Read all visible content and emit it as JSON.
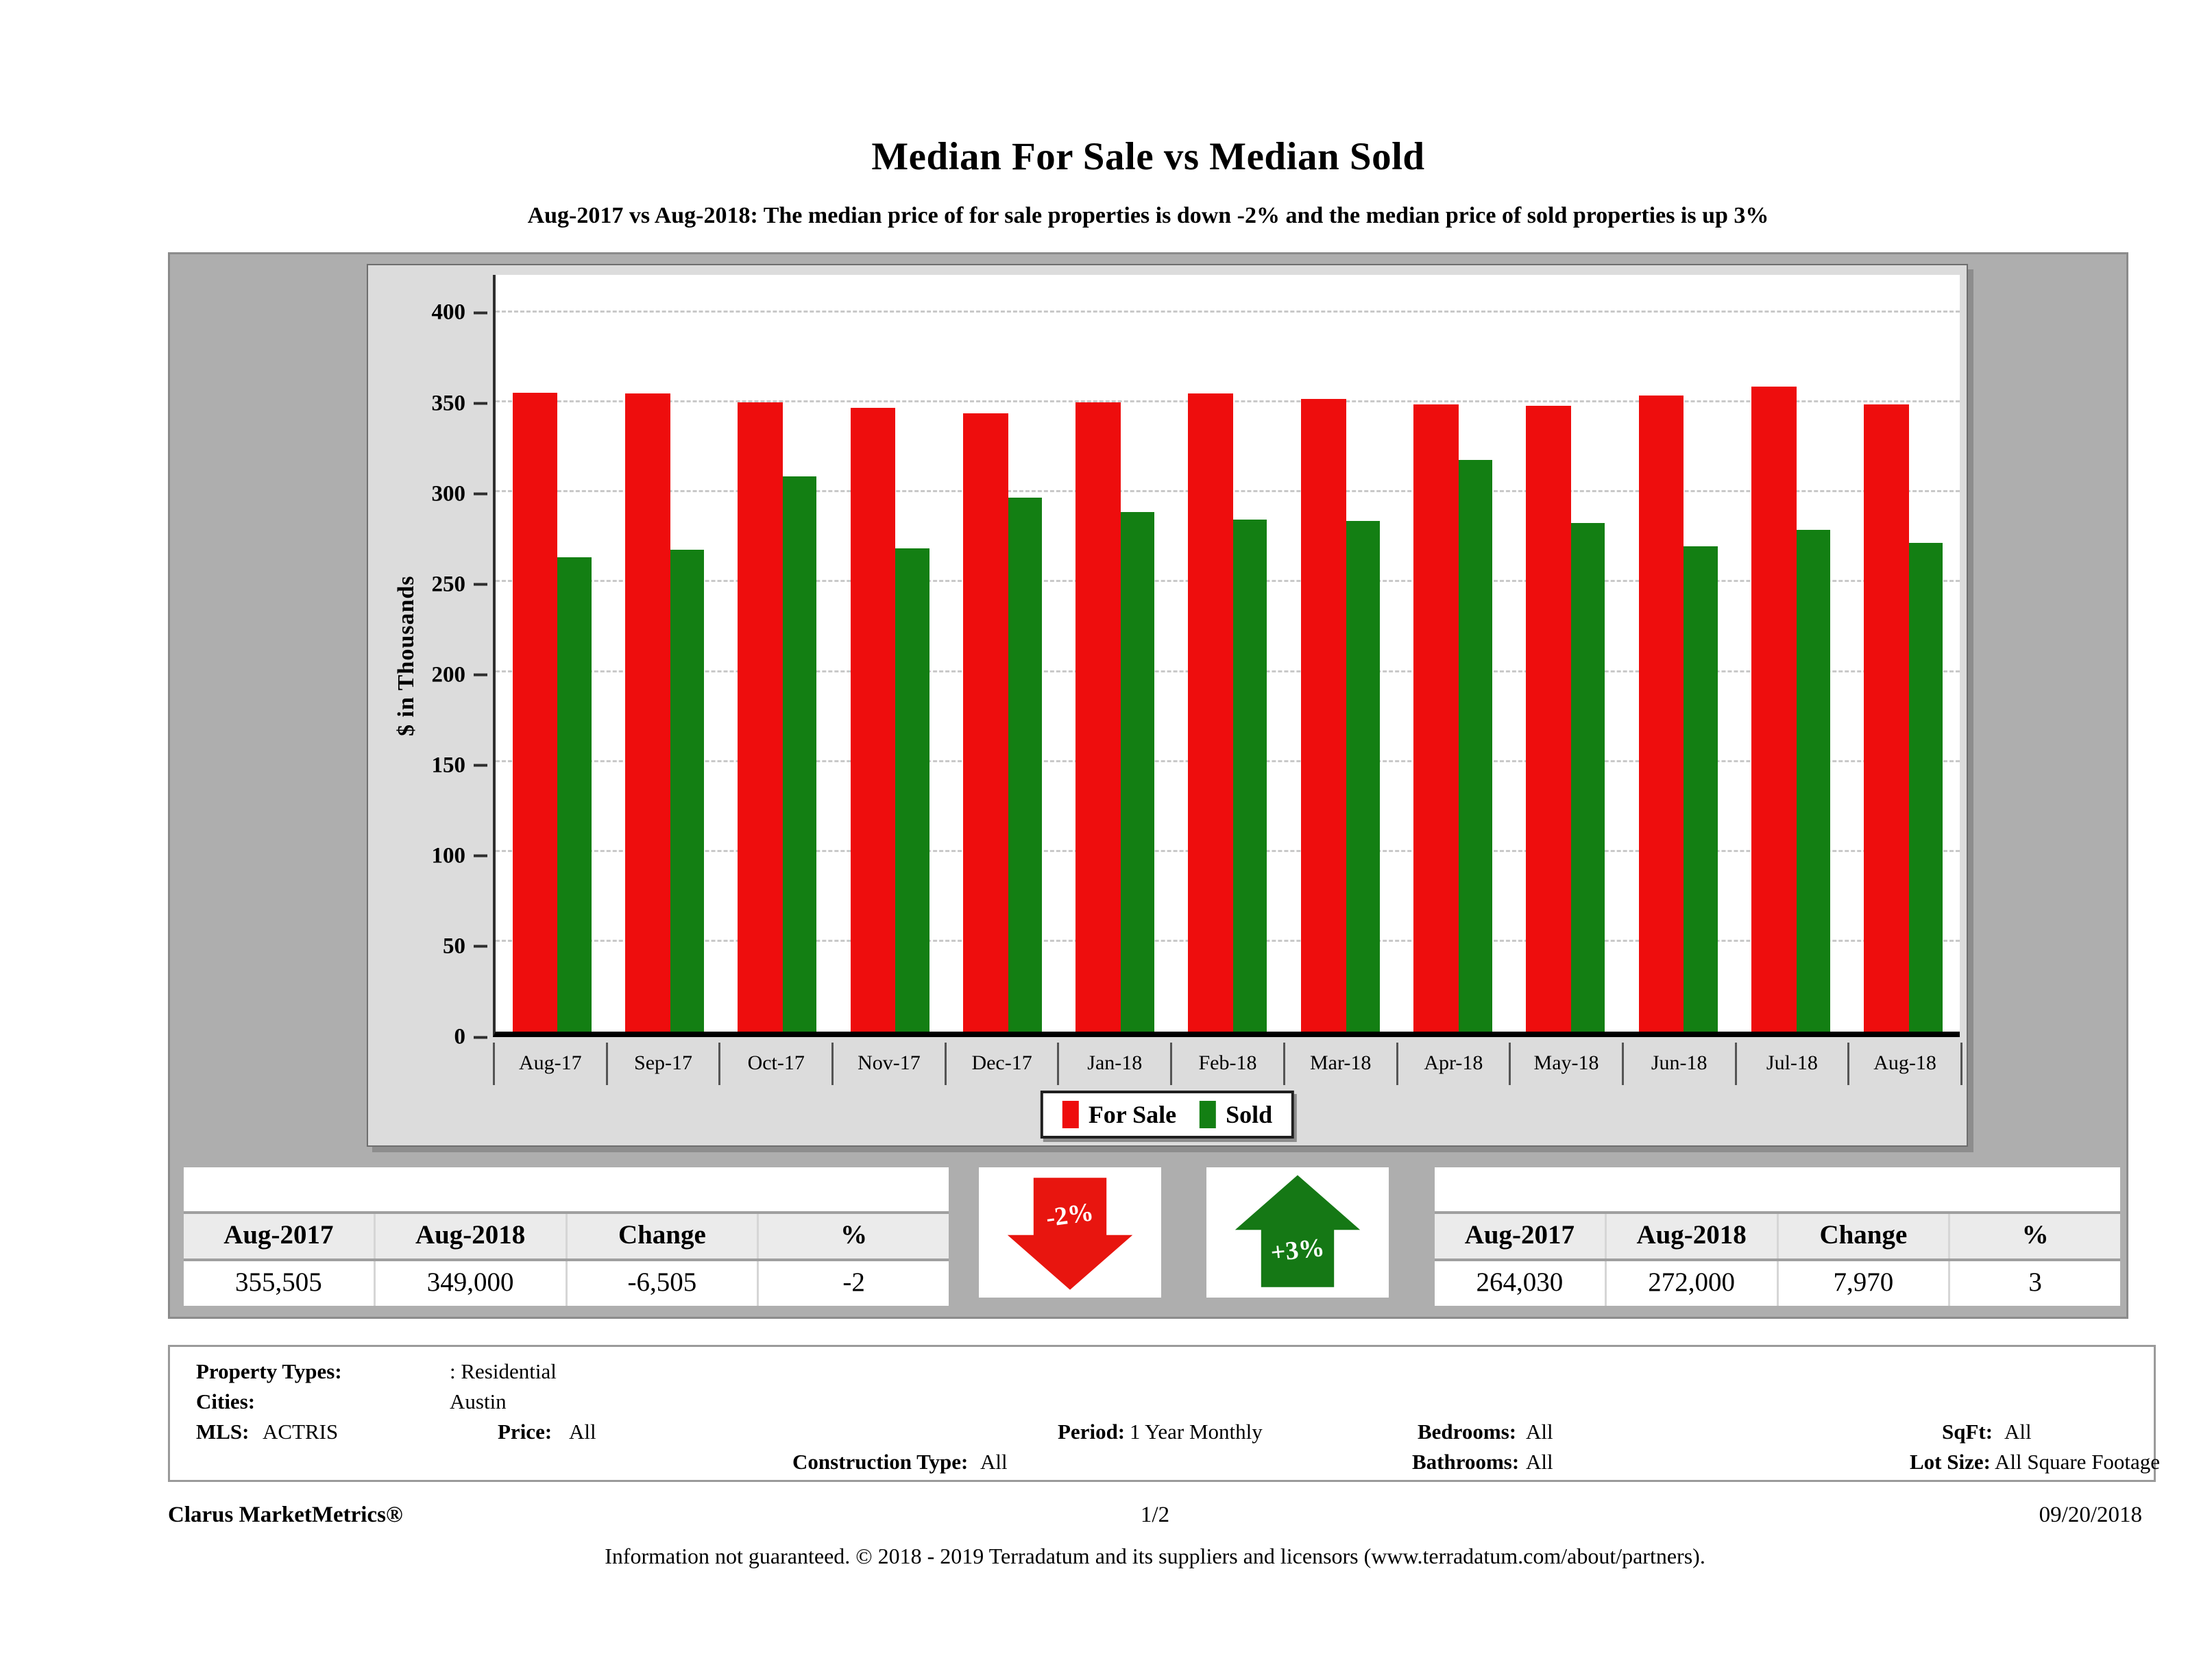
{
  "title": "Median For Sale vs Median Sold",
  "subtitle": "Aug-2017 vs Aug-2018: The median price of for sale properties is down -2% and the median price of sold properties is up 3%",
  "chart_data": {
    "type": "bar",
    "categories": [
      "Aug-17",
      "Sep-17",
      "Oct-17",
      "Nov-17",
      "Dec-17",
      "Jan-18",
      "Feb-18",
      "Mar-18",
      "Apr-18",
      "May-18",
      "Jun-18",
      "Jul-18",
      "Aug-18"
    ],
    "series": [
      {
        "name": "For Sale",
        "color": "#ee0d0d",
        "values": [
          355.5,
          355,
          350,
          347,
          344,
          350,
          355,
          352,
          349,
          348,
          354,
          359,
          349
        ]
      },
      {
        "name": "Sold",
        "color": "#137f13",
        "values": [
          264,
          268,
          309,
          269,
          297,
          289,
          285,
          284,
          318,
          283,
          270,
          279,
          272
        ]
      }
    ],
    "title": "Median For Sale vs Median Sold",
    "xlabel": "",
    "ylabel": "$ in Thousands",
    "yticks": [
      0,
      50,
      100,
      150,
      200,
      250,
      300,
      350,
      400
    ],
    "ylim": [
      0,
      421
    ],
    "grid": "horizontal-dashed",
    "legend_position": "bottom"
  },
  "summary_tables": {
    "for_sale": {
      "headers": [
        "Aug-2017",
        "Aug-2018",
        "Change",
        "%"
      ],
      "values": [
        "355,505",
        "349,000",
        "-6,505",
        "-2"
      ]
    },
    "sold": {
      "headers": [
        "Aug-2017",
        "Aug-2018",
        "Change",
        "%"
      ],
      "values": [
        "264,030",
        "272,000",
        "7,970",
        "3"
      ]
    }
  },
  "arrows": {
    "for_sale": {
      "label": "-2%",
      "direction": "down",
      "color": "#e8150f"
    },
    "sold": {
      "label": "+3%",
      "direction": "up",
      "color": "#157815"
    }
  },
  "filters": {
    "property_types_label": "Property Types:",
    "property_types_value": ": Residential",
    "cities_label": "Cities:",
    "cities_value": "Austin",
    "mls_label": "MLS:",
    "mls_value": "ACTRIS",
    "price_label": "Price:",
    "price_value": "All",
    "period_label": "Period:",
    "period_value": "1 Year Monthly",
    "construction_label": "Construction Type:",
    "construction_value": "All",
    "bedrooms_label": "Bedrooms:",
    "bedrooms_value": "All",
    "bathrooms_label": "Bathrooms:",
    "bathrooms_value": "All",
    "sqft_label": "SqFt:",
    "sqft_value": "All",
    "lotsize_label": "Lot Size:",
    "lotsize_value": "All Square Footage"
  },
  "footer": {
    "brand": "Clarus MarketMetrics®",
    "page": "1/2",
    "date": "09/20/2018",
    "disclaimer": "Information not guaranteed. © 2018 - 2019 Terradatum and its suppliers and licensors (www.terradatum.com/about/partners)."
  }
}
